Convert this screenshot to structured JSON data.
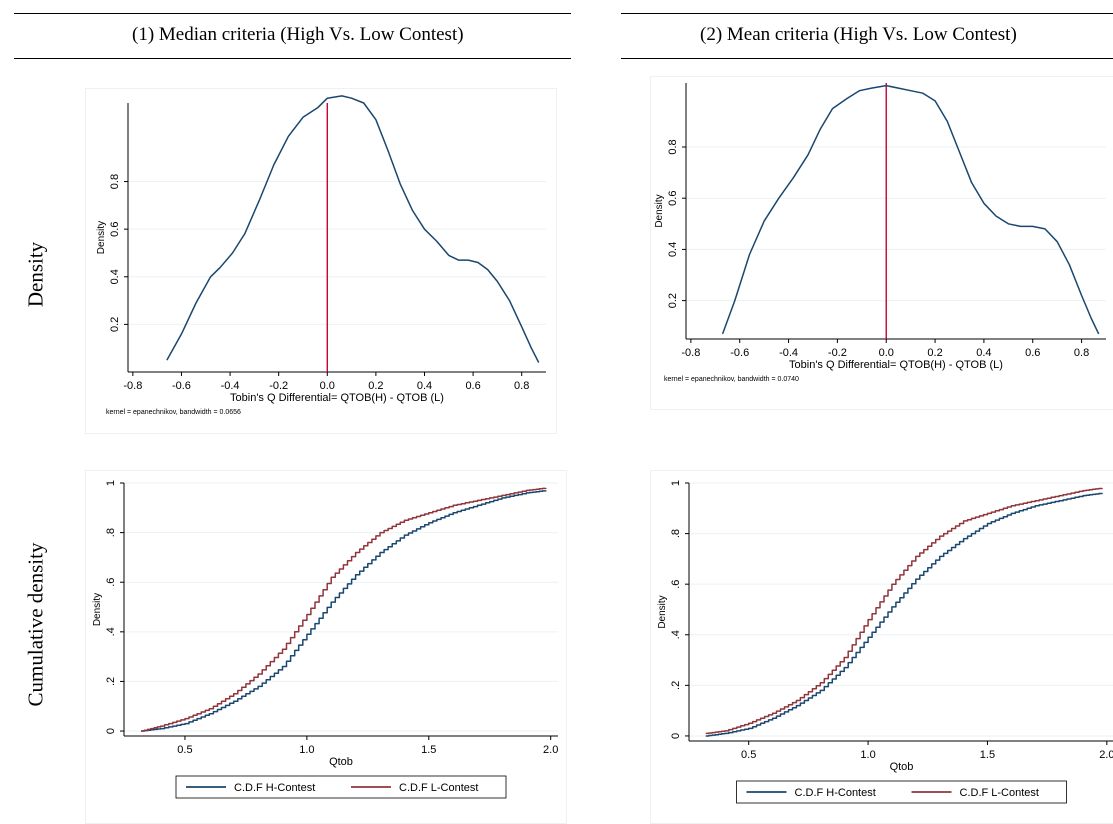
{
  "header": {
    "col1_title": "(1)    Median criteria  (High Vs. Low Contest)",
    "col2_title": "(2)    Mean criteria (High Vs. Low Contest)"
  },
  "row_labels": {
    "density": "Density",
    "cumulative": "Cumulative density"
  },
  "colors": {
    "h_contest": "#1a476f",
    "l_contest": "#90353b",
    "zero_line": "#c10534",
    "grid": "#eaf2f3"
  },
  "chart_data": [
    {
      "type": "line",
      "panel": "median-density",
      "xlabel": "Tobin's Q Differential= QTOB(H) - QTOB (L)",
      "ylabel": "Density",
      "note": "kernel = epanechnikov, bandwidth = 0.0656",
      "xlim": [
        -0.82,
        0.9
      ],
      "ylim": [
        0.0,
        1.13
      ],
      "xticks": [
        -0.8,
        -0.6,
        -0.4,
        -0.2,
        0.0,
        0.2,
        0.4,
        0.6,
        0.8
      ],
      "xtick_labels": [
        "-0.8",
        "-0.6",
        "-0.4",
        "-0.2",
        "0.0",
        "0.2",
        "0.4",
        "0.6",
        "0.8"
      ],
      "yticks": [
        0.2,
        0.4,
        0.6,
        0.8
      ],
      "ytick_labels": [
        "0.2",
        "0.4",
        "0.6",
        "0.8"
      ],
      "vline": 0.0,
      "series": [
        {
          "color": "#1a476f",
          "x": [
            -0.66,
            -0.6,
            -0.54,
            -0.48,
            -0.44,
            -0.39,
            -0.34,
            -0.28,
            -0.22,
            -0.16,
            -0.1,
            -0.04,
            0.0,
            0.06,
            0.1,
            0.15,
            0.2,
            0.25,
            0.3,
            0.35,
            0.4,
            0.45,
            0.5,
            0.54,
            0.58,
            0.62,
            0.66,
            0.7,
            0.75,
            0.8,
            0.84,
            0.87
          ],
          "y": [
            0.05,
            0.16,
            0.29,
            0.4,
            0.44,
            0.5,
            0.58,
            0.72,
            0.87,
            0.99,
            1.07,
            1.11,
            1.15,
            1.16,
            1.15,
            1.13,
            1.06,
            0.93,
            0.79,
            0.68,
            0.6,
            0.55,
            0.49,
            0.47,
            0.47,
            0.46,
            0.43,
            0.38,
            0.3,
            0.19,
            0.1,
            0.04
          ]
        }
      ]
    },
    {
      "type": "line",
      "panel": "mean-density",
      "xlabel": "Tobin's Q Differential= QTOB(H) - QTOB (L)",
      "ylabel": "Density",
      "note": "kernel = epanechnikov, bandwidth = 0.0740",
      "xlim": [
        -0.82,
        0.9
      ],
      "ylim": [
        0.05,
        1.05
      ],
      "xticks": [
        -0.8,
        -0.6,
        -0.4,
        -0.2,
        0.0,
        0.2,
        0.4,
        0.6,
        0.8
      ],
      "xtick_labels": [
        "-0.8",
        "-0.6",
        "-0.4",
        "-0.2",
        "0.0",
        "0.2",
        "0.4",
        "0.6",
        "0.8"
      ],
      "yticks": [
        0.2,
        0.4,
        0.6,
        0.8
      ],
      "ytick_labels": [
        "0.2",
        "0.4",
        "0.6",
        "0.8"
      ],
      "vline": 0.0,
      "series": [
        {
          "color": "#1a476f",
          "x": [
            -0.67,
            -0.62,
            -0.56,
            -0.5,
            -0.44,
            -0.38,
            -0.32,
            -0.27,
            -0.22,
            -0.16,
            -0.11,
            -0.06,
            0.0,
            0.05,
            0.1,
            0.15,
            0.2,
            0.25,
            0.3,
            0.35,
            0.4,
            0.45,
            0.5,
            0.55,
            0.6,
            0.65,
            0.7,
            0.75,
            0.8,
            0.84,
            0.87
          ],
          "y": [
            0.07,
            0.2,
            0.38,
            0.51,
            0.6,
            0.68,
            0.77,
            0.87,
            0.95,
            0.99,
            1.02,
            1.03,
            1.04,
            1.03,
            1.02,
            1.01,
            0.98,
            0.9,
            0.78,
            0.66,
            0.58,
            0.53,
            0.5,
            0.49,
            0.49,
            0.48,
            0.43,
            0.34,
            0.22,
            0.13,
            0.07
          ]
        }
      ]
    },
    {
      "type": "line",
      "panel": "median-cdf",
      "xlabel": "Qtob",
      "ylabel": "Density",
      "xlim": [
        0.25,
        2.03
      ],
      "ylim": [
        -0.02,
        1.0
      ],
      "xticks": [
        0.5,
        1.0,
        1.5,
        2.0
      ],
      "xtick_labels": [
        "0.5",
        "1.0",
        "1.5",
        "2.0"
      ],
      "yticks": [
        0.0,
        0.2,
        0.4,
        0.6,
        0.8,
        1.0
      ],
      "ytick_labels": [
        "0",
        ".2",
        ".4",
        ".6",
        ".8",
        "1"
      ],
      "legend_position": "bottom",
      "series": [
        {
          "name": "C.D.F H-Contest",
          "color": "#1a476f",
          "x": [
            0.32,
            0.4,
            0.5,
            0.6,
            0.7,
            0.8,
            0.9,
            1.0,
            1.1,
            1.2,
            1.3,
            1.4,
            1.5,
            1.6,
            1.7,
            1.8,
            1.9,
            1.98
          ],
          "y": [
            0.0,
            0.01,
            0.03,
            0.07,
            0.12,
            0.18,
            0.26,
            0.39,
            0.52,
            0.63,
            0.72,
            0.79,
            0.84,
            0.88,
            0.91,
            0.94,
            0.96,
            0.97
          ]
        },
        {
          "name": "C.D.F L-Contest",
          "color": "#90353b",
          "x": [
            0.32,
            0.4,
            0.5,
            0.6,
            0.7,
            0.8,
            0.9,
            1.0,
            1.1,
            1.2,
            1.3,
            1.4,
            1.5,
            1.6,
            1.7,
            1.8,
            1.9,
            1.98
          ],
          "y": [
            0.0,
            0.02,
            0.05,
            0.09,
            0.15,
            0.23,
            0.33,
            0.47,
            0.62,
            0.72,
            0.8,
            0.85,
            0.88,
            0.91,
            0.93,
            0.95,
            0.97,
            0.98
          ]
        }
      ]
    },
    {
      "type": "line",
      "panel": "mean-cdf",
      "xlabel": "Qtob",
      "ylabel": "Density",
      "xlim": [
        0.25,
        2.03
      ],
      "ylim": [
        -0.02,
        1.0
      ],
      "xticks": [
        0.5,
        1.0,
        1.5,
        2.0
      ],
      "xtick_labels": [
        "0.5",
        "1.0",
        "1.5",
        "2.0"
      ],
      "yticks": [
        0.0,
        0.2,
        0.4,
        0.6,
        0.8,
        1.0
      ],
      "ytick_labels": [
        "0",
        ".2",
        ".4",
        ".6",
        ".8",
        "1"
      ],
      "legend_position": "bottom",
      "series": [
        {
          "name": "C.D.F H-Contest",
          "color": "#1a476f",
          "x": [
            0.32,
            0.4,
            0.5,
            0.6,
            0.7,
            0.8,
            0.9,
            1.0,
            1.1,
            1.2,
            1.3,
            1.4,
            1.5,
            1.6,
            1.7,
            1.8,
            1.9,
            1.98
          ],
          "y": [
            0.0,
            0.01,
            0.03,
            0.07,
            0.12,
            0.18,
            0.27,
            0.39,
            0.51,
            0.62,
            0.71,
            0.78,
            0.84,
            0.88,
            0.91,
            0.93,
            0.95,
            0.96
          ]
        },
        {
          "name": "C.D.F L-Contest",
          "color": "#90353b",
          "x": [
            0.32,
            0.4,
            0.5,
            0.6,
            0.7,
            0.8,
            0.9,
            1.0,
            1.1,
            1.2,
            1.3,
            1.4,
            1.5,
            1.6,
            1.7,
            1.8,
            1.9,
            1.98
          ],
          "y": [
            0.01,
            0.02,
            0.05,
            0.09,
            0.14,
            0.21,
            0.31,
            0.46,
            0.6,
            0.71,
            0.79,
            0.85,
            0.88,
            0.91,
            0.93,
            0.95,
            0.97,
            0.98
          ]
        }
      ]
    }
  ]
}
